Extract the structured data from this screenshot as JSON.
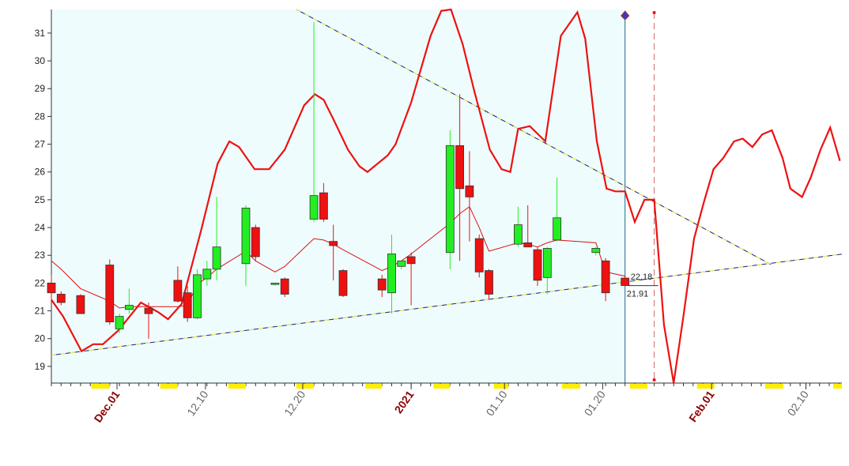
{
  "chart_data": {
    "type": "candlestick",
    "xlim": [
      0,
      81.3
    ],
    "ylim": [
      18.4,
      31.85
    ],
    "yticks": [
      19,
      20,
      21,
      22,
      23,
      24,
      25,
      26,
      27,
      28,
      29,
      30,
      31
    ],
    "xticks": [
      {
        "value": 6.75,
        "label": "Dec.01",
        "emphasis": true
      },
      {
        "value": 15.85,
        "label": "12.10"
      },
      {
        "value": 25.85,
        "label": "12.20"
      },
      {
        "value": 37,
        "label": "2021",
        "emphasis": true
      },
      {
        "value": 46.6,
        "label": "01.10"
      },
      {
        "value": 56.7,
        "label": "01.20"
      },
      {
        "value": 67.9,
        "label": "Feb.01",
        "emphasis": true
      },
      {
        "value": 77.6,
        "label": "02.10"
      }
    ],
    "up_color": "#22ee22",
    "down_color": "#ee1111",
    "shade_color": "#effcfd",
    "candles": [
      {
        "x": 0,
        "open": 22.0,
        "high": 22.3,
        "low": 21.4,
        "close": 21.65
      },
      {
        "x": 1,
        "open": 21.6,
        "high": 21.7,
        "low": 21.2,
        "close": 21.3
      },
      {
        "x": 3,
        "open": 21.55,
        "high": 21.6,
        "low": 20.9,
        "close": 20.9
      },
      {
        "x": 6,
        "open": 22.65,
        "high": 22.85,
        "low": 20.5,
        "close": 20.6
      },
      {
        "x": 7,
        "open": 20.35,
        "high": 20.9,
        "low": 20.2,
        "close": 20.8
      },
      {
        "x": 8,
        "open": 21.05,
        "high": 21.8,
        "low": 20.9,
        "close": 21.2
      },
      {
        "x": 10,
        "open": 21.1,
        "high": 21.3,
        "low": 20.0,
        "close": 20.9
      },
      {
        "x": 13,
        "open": 22.1,
        "high": 22.6,
        "low": 21.3,
        "close": 21.35
      },
      {
        "x": 14,
        "open": 21.65,
        "high": 21.9,
        "low": 20.6,
        "close": 20.75
      },
      {
        "x": 15,
        "open": 20.75,
        "high": 22.5,
        "low": 20.7,
        "close": 22.3
      },
      {
        "x": 16,
        "open": 22.15,
        "high": 22.8,
        "low": 21.9,
        "close": 22.5
      },
      {
        "x": 17,
        "open": 22.5,
        "high": 25.1,
        "low": 22.1,
        "close": 23.3
      },
      {
        "x": 20,
        "open": 22.7,
        "high": 24.8,
        "low": 21.9,
        "close": 24.7
      },
      {
        "x": 21,
        "open": 24.0,
        "high": 24.1,
        "low": 22.8,
        "close": 22.95
      },
      {
        "x": 23,
        "open": 21.95,
        "high": 22.0,
        "low": 21.9,
        "close": 22.0
      },
      {
        "x": 24,
        "open": 22.15,
        "high": 22.2,
        "low": 21.5,
        "close": 21.6
      },
      {
        "x": 27,
        "open": 24.3,
        "high": 31.4,
        "low": 24.2,
        "close": 25.15
      },
      {
        "x": 28,
        "open": 25.25,
        "high": 25.6,
        "low": 24.2,
        "close": 24.3
      },
      {
        "x": 29,
        "open": 23.5,
        "high": 24.1,
        "low": 22.1,
        "close": 23.35
      },
      {
        "x": 30,
        "open": 22.45,
        "high": 22.5,
        "low": 21.5,
        "close": 21.55
      },
      {
        "x": 34,
        "open": 22.15,
        "high": 22.3,
        "low": 21.5,
        "close": 21.75
      },
      {
        "x": 35,
        "open": 21.65,
        "high": 23.75,
        "low": 20.9,
        "close": 23.05
      },
      {
        "x": 36,
        "open": 22.6,
        "high": 22.8,
        "low": 22.5,
        "close": 22.8
      },
      {
        "x": 37,
        "open": 22.95,
        "high": 23.1,
        "low": 21.2,
        "close": 22.7
      },
      {
        "x": 41,
        "open": 23.1,
        "high": 27.5,
        "low": 22.5,
        "close": 26.95
      },
      {
        "x": 42,
        "open": 26.95,
        "high": 28.8,
        "low": 22.8,
        "close": 25.4
      },
      {
        "x": 43,
        "open": 25.5,
        "high": 26.75,
        "low": 23.5,
        "close": 25.1
      },
      {
        "x": 44,
        "open": 23.6,
        "high": 23.75,
        "low": 22.2,
        "close": 22.4
      },
      {
        "x": 45,
        "open": 22.45,
        "high": 22.5,
        "low": 21.4,
        "close": 21.6
      },
      {
        "x": 48,
        "open": 23.4,
        "high": 24.75,
        "low": 23.3,
        "close": 24.1
      },
      {
        "x": 49,
        "open": 23.45,
        "high": 24.8,
        "low": 23.3,
        "close": 23.3
      },
      {
        "x": 50,
        "open": 23.2,
        "high": 23.3,
        "low": 21.9,
        "close": 22.1
      },
      {
        "x": 51,
        "open": 22.2,
        "high": 23.3,
        "low": 21.6,
        "close": 23.25
      },
      {
        "x": 52,
        "open": 23.55,
        "high": 25.8,
        "low": 23.5,
        "close": 24.35
      },
      {
        "x": 56,
        "open": 23.1,
        "high": 23.3,
        "low": 23.0,
        "close": 23.25
      },
      {
        "x": 57,
        "open": 22.8,
        "high": 22.9,
        "low": 21.35,
        "close": 21.65
      },
      {
        "x": 59,
        "open": 22.18,
        "high": 22.25,
        "low": 21.9,
        "close": 21.91
      }
    ],
    "price_labels": [
      "22.18",
      "21.91"
    ],
    "ma": {
      "color": "#dd1111",
      "x": [
        0,
        1,
        3,
        6,
        7,
        8,
        10,
        13,
        14,
        15,
        16,
        17,
        20,
        21,
        23,
        24,
        27,
        28,
        29,
        30,
        34,
        35,
        36,
        37,
        41,
        42,
        43,
        44,
        45,
        48,
        49,
        50,
        51,
        52,
        56,
        57,
        59
      ],
      "values": [
        22.8,
        22.5,
        21.8,
        21.35,
        21.1,
        21.15,
        21.15,
        21.15,
        21.2,
        21.95,
        22.2,
        22.5,
        23.15,
        22.8,
        22.4,
        22.6,
        23.6,
        23.55,
        23.4,
        23.2,
        22.45,
        22.6,
        22.8,
        23.05,
        24.15,
        24.5,
        24.75,
        24.0,
        23.15,
        23.45,
        23.4,
        23.3,
        23.45,
        23.55,
        23.45,
        22.4,
        22.25
      ]
    },
    "forecast": {
      "color": "#ee1111",
      "x": [
        0,
        1.2,
        3.1,
        4.3,
        5.3,
        6.9,
        9.2,
        11,
        12,
        13.4,
        15.4,
        17.1,
        18.3,
        19.3,
        20.9,
        22.4,
        24,
        26,
        27.1,
        28,
        29,
        30.5,
        31.7,
        32.5,
        34.6,
        35.4,
        37,
        39,
        40.1,
        41.1,
        42.3,
        43.5,
        45.1,
        46.3,
        47.2,
        48,
        49.2,
        50.8,
        52.4,
        54.1,
        54.9,
        56.1,
        57.1,
        58,
        59,
        60,
        61,
        62,
        63,
        64,
        65,
        66.1,
        67.1,
        68.1,
        69.1,
        70.2,
        71.1,
        72.1,
        73.1,
        74.1,
        75.2,
        76,
        77.2,
        78.1,
        79.1,
        80.1,
        81.1
      ],
      "values": [
        21.4,
        20.8,
        19.55,
        19.8,
        19.8,
        20.3,
        21.3,
        20.95,
        20.7,
        21.25,
        23.9,
        26.3,
        27.1,
        26.9,
        26.1,
        26.1,
        26.8,
        28.4,
        28.8,
        28.6,
        27.9,
        26.8,
        26.2,
        26.0,
        26.6,
        27.0,
        28.5,
        30.9,
        31.8,
        31.85,
        30.6,
        28.9,
        26.8,
        26.1,
        26.0,
        27.55,
        27.65,
        27.1,
        30.9,
        31.75,
        30.8,
        27.1,
        25.4,
        25.3,
        25.3,
        24.2,
        25.0,
        25.0,
        20.5,
        18.4,
        20.8,
        23.6,
        24.9,
        26.1,
        26.5,
        27.1,
        27.2,
        26.9,
        27.35,
        27.5,
        26.5,
        25.4,
        25.1,
        25.8,
        26.8,
        27.6,
        26.4
      ]
    },
    "trendlines": [
      {
        "x": [
          25.2,
          74
        ],
        "values": [
          31.85,
          22.67
        ]
      },
      {
        "x": [
          0,
          81.3
        ],
        "values": [
          19.4,
          23.04
        ]
      }
    ],
    "current_x": 59,
    "target_x": 62
  }
}
